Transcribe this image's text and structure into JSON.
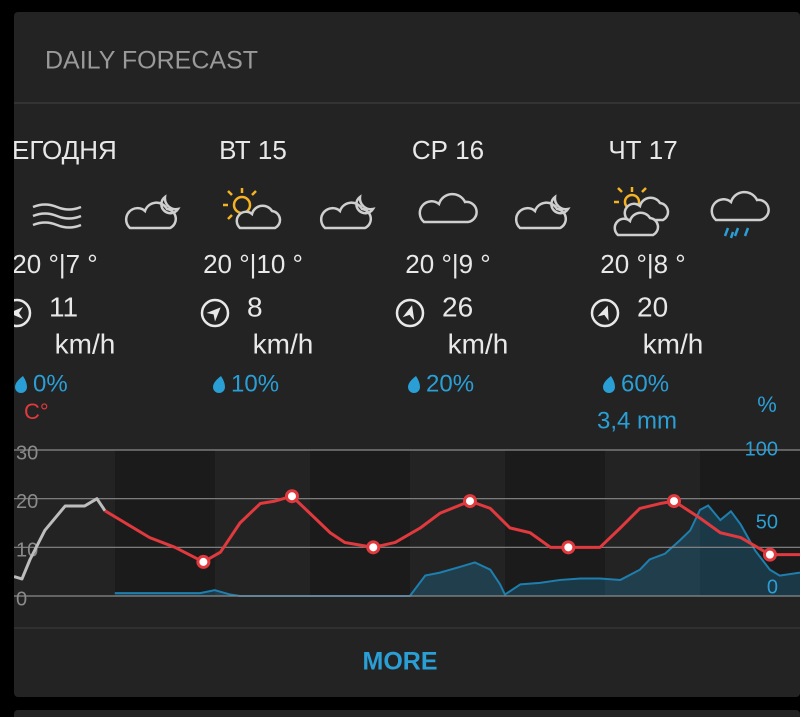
{
  "header": {
    "title": "DAILY FORECAST"
  },
  "days": [
    {
      "label": "СЕГОДНЯ",
      "temps": "20 °|7 °",
      "wind": "11",
      "wind_unit": "km/h",
      "precip_chance": "0%"
    },
    {
      "label": "ВТ 15",
      "temps": "20 °|10 °",
      "wind": "8",
      "wind_unit": "km/h",
      "precip_chance": "10%"
    },
    {
      "label": "СР 16",
      "temps": "20 °|9 °",
      "wind": "26",
      "wind_unit": "km/h",
      "precip_chance": "20%"
    },
    {
      "label": "ЧТ 17",
      "temps": "20 °|8 °",
      "wind": "20",
      "wind_unit": "km/h",
      "precip_chance": "60%",
      "precip_amount": "3,4 mm"
    }
  ],
  "chart_data": {
    "type": "line",
    "y_label": "C°",
    "y2_label": "%",
    "xlim": [
      0,
      96.7
    ],
    "ylim": [
      0,
      30
    ],
    "yticks": [
      0,
      10,
      20,
      30
    ],
    "y2lim": [
      0,
      100
    ],
    "y2ticks": [
      0,
      50,
      100
    ],
    "grid": true,
    "series": [
      {
        "name": "past",
        "color": "#bdbdbd",
        "x": [
          0,
          0.98,
          1.97,
          3.8,
          6.3,
          8.7,
          10.2,
          11.2
        ],
        "values": [
          4,
          3.5,
          7.5,
          13.5,
          18.5,
          18.5,
          20,
          17.5
        ]
      },
      {
        "name": "forecast",
        "color": "#e0393e",
        "x": [
          11.2,
          13.7,
          16.7,
          19.8,
          23.3,
          25.4,
          27.8,
          30.3,
          32.1,
          34.2,
          36.4,
          38.9,
          40.7,
          44.2,
          46.9,
          50,
          52.4,
          56.1,
          58.6,
          61,
          63.5,
          66,
          68.2,
          72.1,
          74.6,
          77,
          79.5,
          81.2,
          84.4,
          86.9,
          89.4,
          93,
          96.7
        ],
        "values": [
          17.5,
          15,
          12,
          10,
          7,
          9,
          15,
          19,
          19.5,
          20.5,
          17,
          13,
          11,
          10,
          11,
          14,
          17,
          19.5,
          18,
          14,
          13,
          10,
          10,
          10,
          14,
          18,
          19,
          19.5,
          16,
          13,
          12,
          8.5,
          8.5
        ]
      },
      {
        "name": "extremes",
        "color": "#e0393e",
        "x": [
          23.3,
          34.2,
          44.2,
          56.1,
          68.2,
          81.2,
          93
        ],
        "values": [
          7,
          20.5,
          10,
          19.5,
          10,
          19.5,
          8.5
        ]
      },
      {
        "name": "precipitation",
        "color": "#1e7fae",
        "axis": "y2",
        "x": [
          12.4,
          22.9,
          24.7,
          26.6,
          27.8,
          48.7,
          50.6,
          52.4,
          54.9,
          56.7,
          58.6,
          59.8,
          60.4,
          62.3,
          64.7,
          67.2,
          69.7,
          72.1,
          74.6,
          77,
          78.2,
          80.1,
          81.9,
          83.2,
          84.4,
          85.4,
          86.9,
          88.2,
          89.4,
          91.2,
          93,
          94.2,
          96.7
        ],
        "values": [
          2,
          2,
          4,
          1,
          0,
          0,
          14,
          16,
          20,
          23,
          18,
          8,
          1,
          8,
          9,
          11,
          12,
          12,
          11,
          18,
          25,
          29,
          38,
          45,
          59,
          62,
          52,
          58,
          49,
          31,
          18,
          14,
          16
        ]
      }
    ]
  },
  "button": {
    "label": "MORE"
  }
}
